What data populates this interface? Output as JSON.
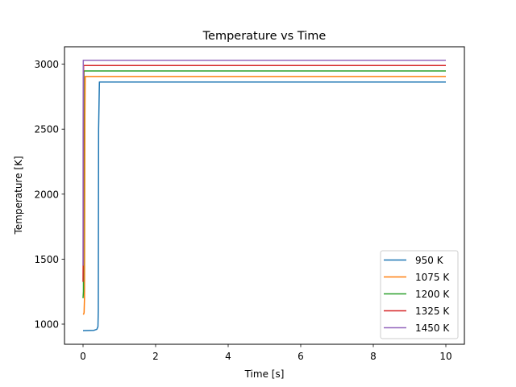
{
  "chart_data": {
    "type": "line",
    "title": "Temperature vs Time",
    "xlabel": "Time [s]",
    "ylabel": "Temperature [K]",
    "xlim": [
      -0.5,
      10.5
    ],
    "ylim": [
      850,
      3100
    ],
    "xticks": [
      0,
      2,
      4,
      6,
      8,
      10
    ],
    "yticks": [
      1000,
      1500,
      2000,
      2500,
      3000
    ],
    "grid": false,
    "legend_position": "lower right",
    "series": [
      {
        "name": "950 K",
        "color": "#1f77b4",
        "x": [
          0,
          0.3,
          0.38,
          0.41,
          0.42,
          0.43,
          0.45,
          10
        ],
        "y": [
          950,
          952,
          960,
          980,
          1100,
          2500,
          2862,
          2862
        ]
      },
      {
        "name": "1075 K",
        "color": "#ff7f0e",
        "x": [
          0,
          0.02,
          0.03,
          0.04,
          0.05,
          0.06,
          10
        ],
        "y": [
          1075,
          1078,
          1090,
          1200,
          2600,
          2905,
          2905
        ]
      },
      {
        "name": "1200 K",
        "color": "#2ca02c",
        "x": [
          0,
          0.01,
          0.02,
          0.025,
          10
        ],
        "y": [
          1200,
          1250,
          2500,
          2948,
          2948
        ]
      },
      {
        "name": "1325 K",
        "color": "#d62728",
        "x": [
          0,
          0.005,
          0.01,
          0.015,
          10
        ],
        "y": [
          1325,
          1500,
          2800,
          2990,
          2990
        ]
      },
      {
        "name": "1450 K",
        "color": "#9467bd",
        "x": [
          0,
          0.003,
          0.006,
          10
        ],
        "y": [
          1450,
          2500,
          3030,
          3030
        ]
      }
    ]
  }
}
